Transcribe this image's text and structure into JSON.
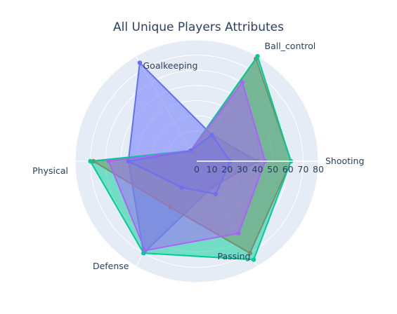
{
  "chart_data": {
    "type": "radar",
    "title": "All Unique Players Attributes",
    "axes": [
      "Shooting",
      "Ball_control",
      "Goalkeeping",
      "Physical",
      "Defense",
      "Passing"
    ],
    "radial_range": [
      0,
      80
    ],
    "radial_ticks": [
      "0",
      "10",
      "20",
      "30",
      "40",
      "50",
      "60",
      "70",
      "80"
    ],
    "legend": "none",
    "grid": true,
    "series": [
      {
        "color": "#636efa",
        "values": [
          40,
          20,
          75,
          45,
          70,
          20
        ],
        "opacity": 0.5
      },
      {
        "color": "#EF553B",
        "values": [
          62,
          78,
          8,
          68,
          35,
          70
        ],
        "opacity": 0.5
      },
      {
        "color": "#00cc96",
        "values": [
          62,
          80,
          8,
          70,
          70,
          75
        ],
        "opacity": 0.5
      },
      {
        "color": "#ab63fa",
        "values": [
          45,
          60,
          8,
          58,
          68,
          55
        ],
        "opacity": 0.5
      },
      {
        "color": "#6f6ff0",
        "values": [
          22,
          20,
          8,
          45,
          20,
          25
        ],
        "opacity": 0.25
      }
    ]
  }
}
